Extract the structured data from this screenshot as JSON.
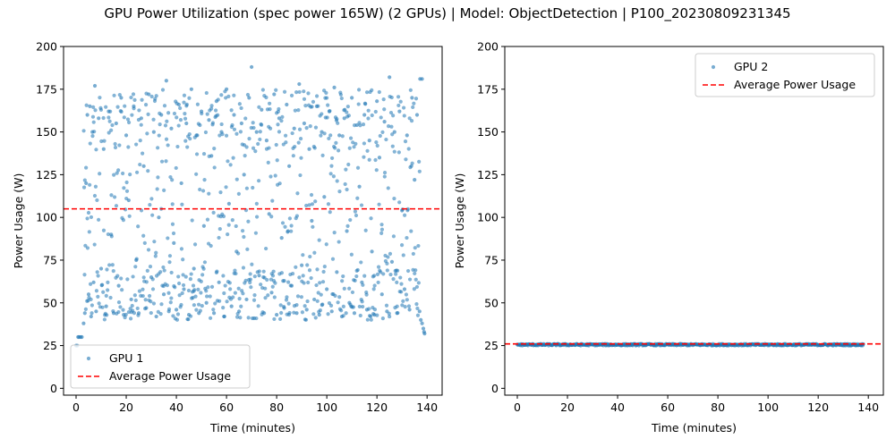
{
  "figure": {
    "suptitle": "GPU Power Utilization (spec power 165W) (2 GPUs) | Model: ObjectDetection | P100_20230809231345"
  },
  "chart_data": [
    {
      "type": "scatter",
      "series": [
        {
          "name": "GPU 1",
          "color": "#1f77b4",
          "summary": {
            "x_range": [
              0,
              139
            ],
            "idle_start": {
              "x_range": [
                0,
                3
              ],
              "values": [
                25,
                30
              ]
            },
            "band_low": [
              40,
              70
            ],
            "band_high": [
              140,
              175
            ],
            "spread_between": [
              70,
              140
            ],
            "max": 188,
            "tail_end": {
              "x_range": [
                137,
                139
              ],
              "values": [
                32,
                45
              ]
            }
          },
          "points": [
            [
              0,
              25
            ],
            [
              0.5,
              25
            ],
            [
              0.8,
              30
            ],
            [
              1.2,
              30
            ],
            [
              1.8,
              30
            ],
            [
              2.3,
              30
            ],
            [
              3,
              38
            ],
            [
              3.5,
              44
            ],
            [
              4,
              120
            ],
            [
              4.5,
              160
            ],
            [
              5,
              55
            ],
            [
              5.5,
              165
            ],
            [
              6,
              42
            ],
            [
              6.5,
              150
            ],
            [
              7,
              62
            ],
            [
              7.5,
              177
            ],
            [
              8,
              45
            ],
            [
              9,
              158
            ],
            [
              10,
              70
            ],
            [
              11,
              140
            ],
            [
              12,
              48
            ],
            [
              13,
              162
            ],
            [
              14,
              90
            ],
            [
              15,
              44
            ],
            [
              16,
              155
            ],
            [
              17,
              60
            ],
            [
              18,
              170
            ],
            [
              19,
              43
            ],
            [
              20,
              148
            ],
            [
              21,
              110
            ],
            [
              22,
              52
            ],
            [
              23,
              165
            ],
            [
              24,
              75
            ],
            [
              25,
              44
            ],
            [
              26,
              158
            ],
            [
              27,
              130
            ],
            [
              28,
              47
            ],
            [
              29,
              172
            ],
            [
              30,
              65
            ],
            [
              31,
              150
            ],
            [
              32,
              42
            ],
            [
              33,
              100
            ],
            [
              34,
              160
            ],
            [
              35,
              55
            ],
            [
              36,
              180
            ],
            [
              37,
              45
            ],
            [
              38,
              152
            ],
            [
              39,
              85
            ],
            [
              40,
              46
            ],
            [
              41,
              166
            ],
            [
              42,
              120
            ],
            [
              43,
              58
            ],
            [
              44,
              155
            ],
            [
              45,
              43
            ],
            [
              46,
              175
            ],
            [
              47,
              70
            ],
            [
              48,
              148
            ],
            [
              49,
              44
            ],
            [
              50,
              162
            ],
            [
              51,
              95
            ],
            [
              52,
              50
            ],
            [
              53,
              157
            ],
            [
              54,
              136
            ],
            [
              55,
              44
            ],
            [
              56,
              168
            ],
            [
              57,
              62
            ],
            [
              58,
              150
            ],
            [
              59,
              42
            ],
            [
              60,
              175
            ],
            [
              61,
              108
            ],
            [
              62,
              48
            ],
            [
              63,
              160
            ],
            [
              64,
              80
            ],
            [
              65,
              45
            ],
            [
              66,
              155
            ],
            [
              67,
              125
            ],
            [
              68,
              52
            ],
            [
              69,
              170
            ],
            [
              70,
              188
            ],
            [
              71,
              41
            ],
            [
              72,
              150
            ],
            [
              73,
              66
            ],
            [
              74,
              163
            ],
            [
              75,
              44
            ],
            [
              76,
              145
            ],
            [
              77,
              102
            ],
            [
              78,
              56
            ],
            [
              79,
              172
            ],
            [
              80,
              43
            ],
            [
              81,
              158
            ],
            [
              82,
              88
            ],
            [
              83,
              47
            ],
            [
              84,
              166
            ],
            [
              85,
              130
            ],
            [
              86,
              60
            ],
            [
              87,
              152
            ],
            [
              88,
              44
            ],
            [
              89,
              178
            ],
            [
              90,
              72
            ],
            [
              91,
              155
            ],
            [
              92,
              46
            ],
            [
              93,
              140
            ],
            [
              94,
              98
            ],
            [
              95,
              52
            ],
            [
              96,
              165
            ],
            [
              97,
              43
            ],
            [
              98,
              150
            ],
            [
              99,
              112
            ],
            [
              100,
              58
            ],
            [
              101,
              162
            ],
            [
              102,
              45
            ],
            [
              103,
              176
            ],
            [
              104,
              68
            ],
            [
              105,
              148
            ],
            [
              106,
              42
            ],
            [
              107,
              158
            ],
            [
              108,
              92
            ],
            [
              109,
              50
            ],
            [
              110,
              170
            ],
            [
              111,
              44
            ],
            [
              112,
              154
            ],
            [
              113,
              118
            ],
            [
              114,
              62
            ],
            [
              115,
              160
            ],
            [
              116,
              46
            ],
            [
              117,
              145
            ],
            [
              118,
              80
            ],
            [
              119,
              43
            ],
            [
              120,
              168
            ],
            [
              121,
              135
            ],
            [
              122,
              55
            ],
            [
              123,
              156
            ],
            [
              124,
              45
            ],
            [
              125,
              182
            ],
            [
              126,
              74
            ],
            [
              127,
              150
            ],
            [
              128,
              44
            ],
            [
              129,
              162
            ],
            [
              130,
              104
            ],
            [
              131,
              58
            ],
            [
              132,
              148
            ],
            [
              133,
              46
            ],
            [
              134,
              170
            ],
            [
              135,
              122
            ],
            [
              136,
              160
            ],
            [
              137,
              45
            ],
            [
              137.5,
              40
            ],
            [
              138,
              38
            ],
            [
              138.5,
              35
            ],
            [
              138.8,
              33
            ],
            [
              139,
              32
            ],
            [
              137.2,
              181
            ],
            [
              138,
              181
            ]
          ]
        },
        {
          "name": "Average Power Usage",
          "color": "#ff0000",
          "style": "dashed",
          "value": 105
        }
      ],
      "xlabel": "Time (minutes)",
      "ylabel": "Power Usage (W)",
      "xlim": [
        -5,
        146
      ],
      "ylim": [
        -4,
        200
      ],
      "xticks": [
        0,
        20,
        40,
        60,
        80,
        100,
        120,
        140
      ],
      "yticks": [
        0,
        25,
        50,
        75,
        100,
        125,
        150,
        175,
        200
      ],
      "legend": {
        "placement": "lower left",
        "entries": [
          "GPU 1",
          "Average Power Usage"
        ]
      },
      "grid": false
    },
    {
      "type": "scatter",
      "series": [
        {
          "name": "GPU 2",
          "color": "#1f77b4",
          "summary": {
            "x_range": [
              0,
              138
            ],
            "values": [
              25,
              26
            ]
          }
        },
        {
          "name": "Average Power Usage",
          "color": "#ff0000",
          "style": "dashed",
          "value": 26
        }
      ],
      "xlabel": "Time (minutes)",
      "ylabel": "Power Usage (W)",
      "xlim": [
        -5,
        146
      ],
      "ylim": [
        -4,
        200
      ],
      "xticks": [
        0,
        20,
        40,
        60,
        80,
        100,
        120,
        140
      ],
      "yticks": [
        0,
        25,
        50,
        75,
        100,
        125,
        150,
        175,
        200
      ],
      "legend": {
        "placement": "upper right",
        "entries": [
          "GPU 2",
          "Average Power Usage"
        ]
      },
      "grid": false
    }
  ]
}
